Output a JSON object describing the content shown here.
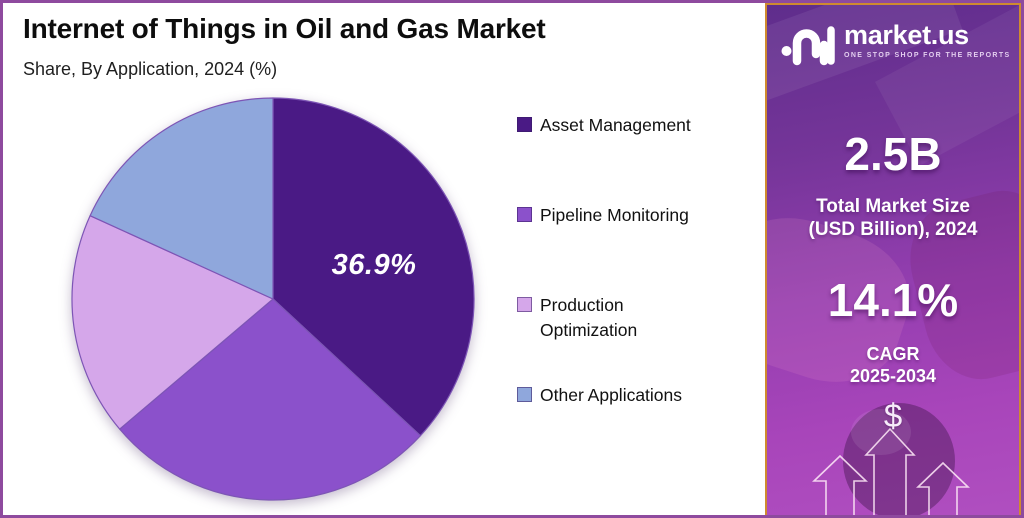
{
  "header": {
    "title": "Internet of Things in Oil and Gas Market",
    "subtitle": "Share, By Application, 2024 (%)"
  },
  "chart_data": {
    "type": "pie",
    "title": "Internet of Things in Oil and Gas Market",
    "subtitle": "Share, By Application, 2024 (%)",
    "categories": [
      "Asset Management",
      "Pipeline Monitoring",
      "Production Optimization",
      "Other Applications"
    ],
    "values": [
      36.9,
      26.9,
      18.0,
      18.2
    ],
    "unit": "%",
    "colors": [
      "#4a1a85",
      "#8b51cb",
      "#d5a7ea",
      "#8fa7dc"
    ],
    "slice_stroke": "#7d55b5",
    "start_angle_deg": 0,
    "direction": "clockwise",
    "labeled_slice": {
      "category": "Asset Management",
      "text": "36.9%"
    },
    "legend_position": "right",
    "legend_entries": [
      "Asset Management",
      "Pipeline Monitoring",
      "Production Optimization",
      "Other Applications"
    ]
  },
  "panel": {
    "brand": "market.us",
    "tagline": "ONE STOP SHOP FOR THE REPORTS",
    "market_size_value": "2.5B",
    "market_size_label": [
      "Total Market Size",
      "(USD Billion), 2024"
    ],
    "cagr_value": "14.1%",
    "cagr_label": [
      "CAGR",
      "2025-2034"
    ],
    "dollar_symbol": "$"
  },
  "colors": {
    "frame_border": "#8e4a9e",
    "panel_border": "#cf8a2f",
    "panel_gradient_top": "#5f2d8c",
    "panel_gradient_bottom": "#b04fc0",
    "slice_label_color": "#ffffff",
    "background": "#ffffff",
    "text": "#111111"
  }
}
